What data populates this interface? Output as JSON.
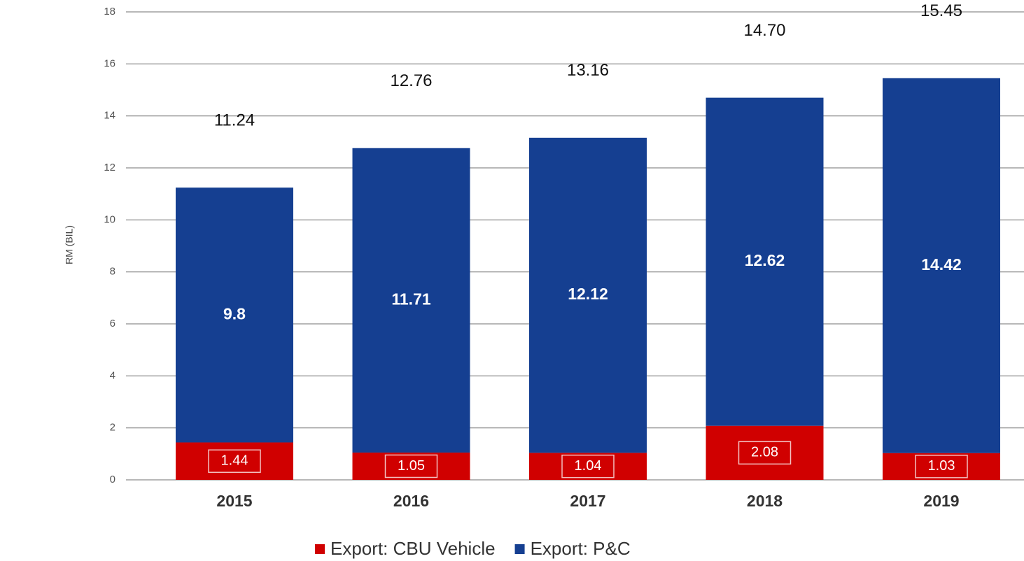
{
  "chart_data": {
    "type": "stacked_bar",
    "ylabel": "RM (BIL)",
    "categories": [
      "2015",
      "2016",
      "2017",
      "2018",
      "2019"
    ],
    "series": [
      {
        "name": "Export: CBU Vehicle",
        "color": "#d00000",
        "values": [
          1.44,
          1.05,
          1.04,
          2.08,
          1.03
        ]
      },
      {
        "name": "Export: P&C",
        "color": "#153f91",
        "values": [
          9.8,
          11.71,
          12.12,
          12.62,
          14.42
        ]
      }
    ],
    "total_labels": [
      "11.24",
      "12.76",
      "13.16",
      "14.70",
      "15.45"
    ],
    "ylim": [
      0,
      18
    ],
    "yticks": [
      0,
      2,
      4,
      6,
      8,
      10,
      12,
      14,
      16,
      18
    ],
    "grid": true,
    "legend": "bottom"
  }
}
